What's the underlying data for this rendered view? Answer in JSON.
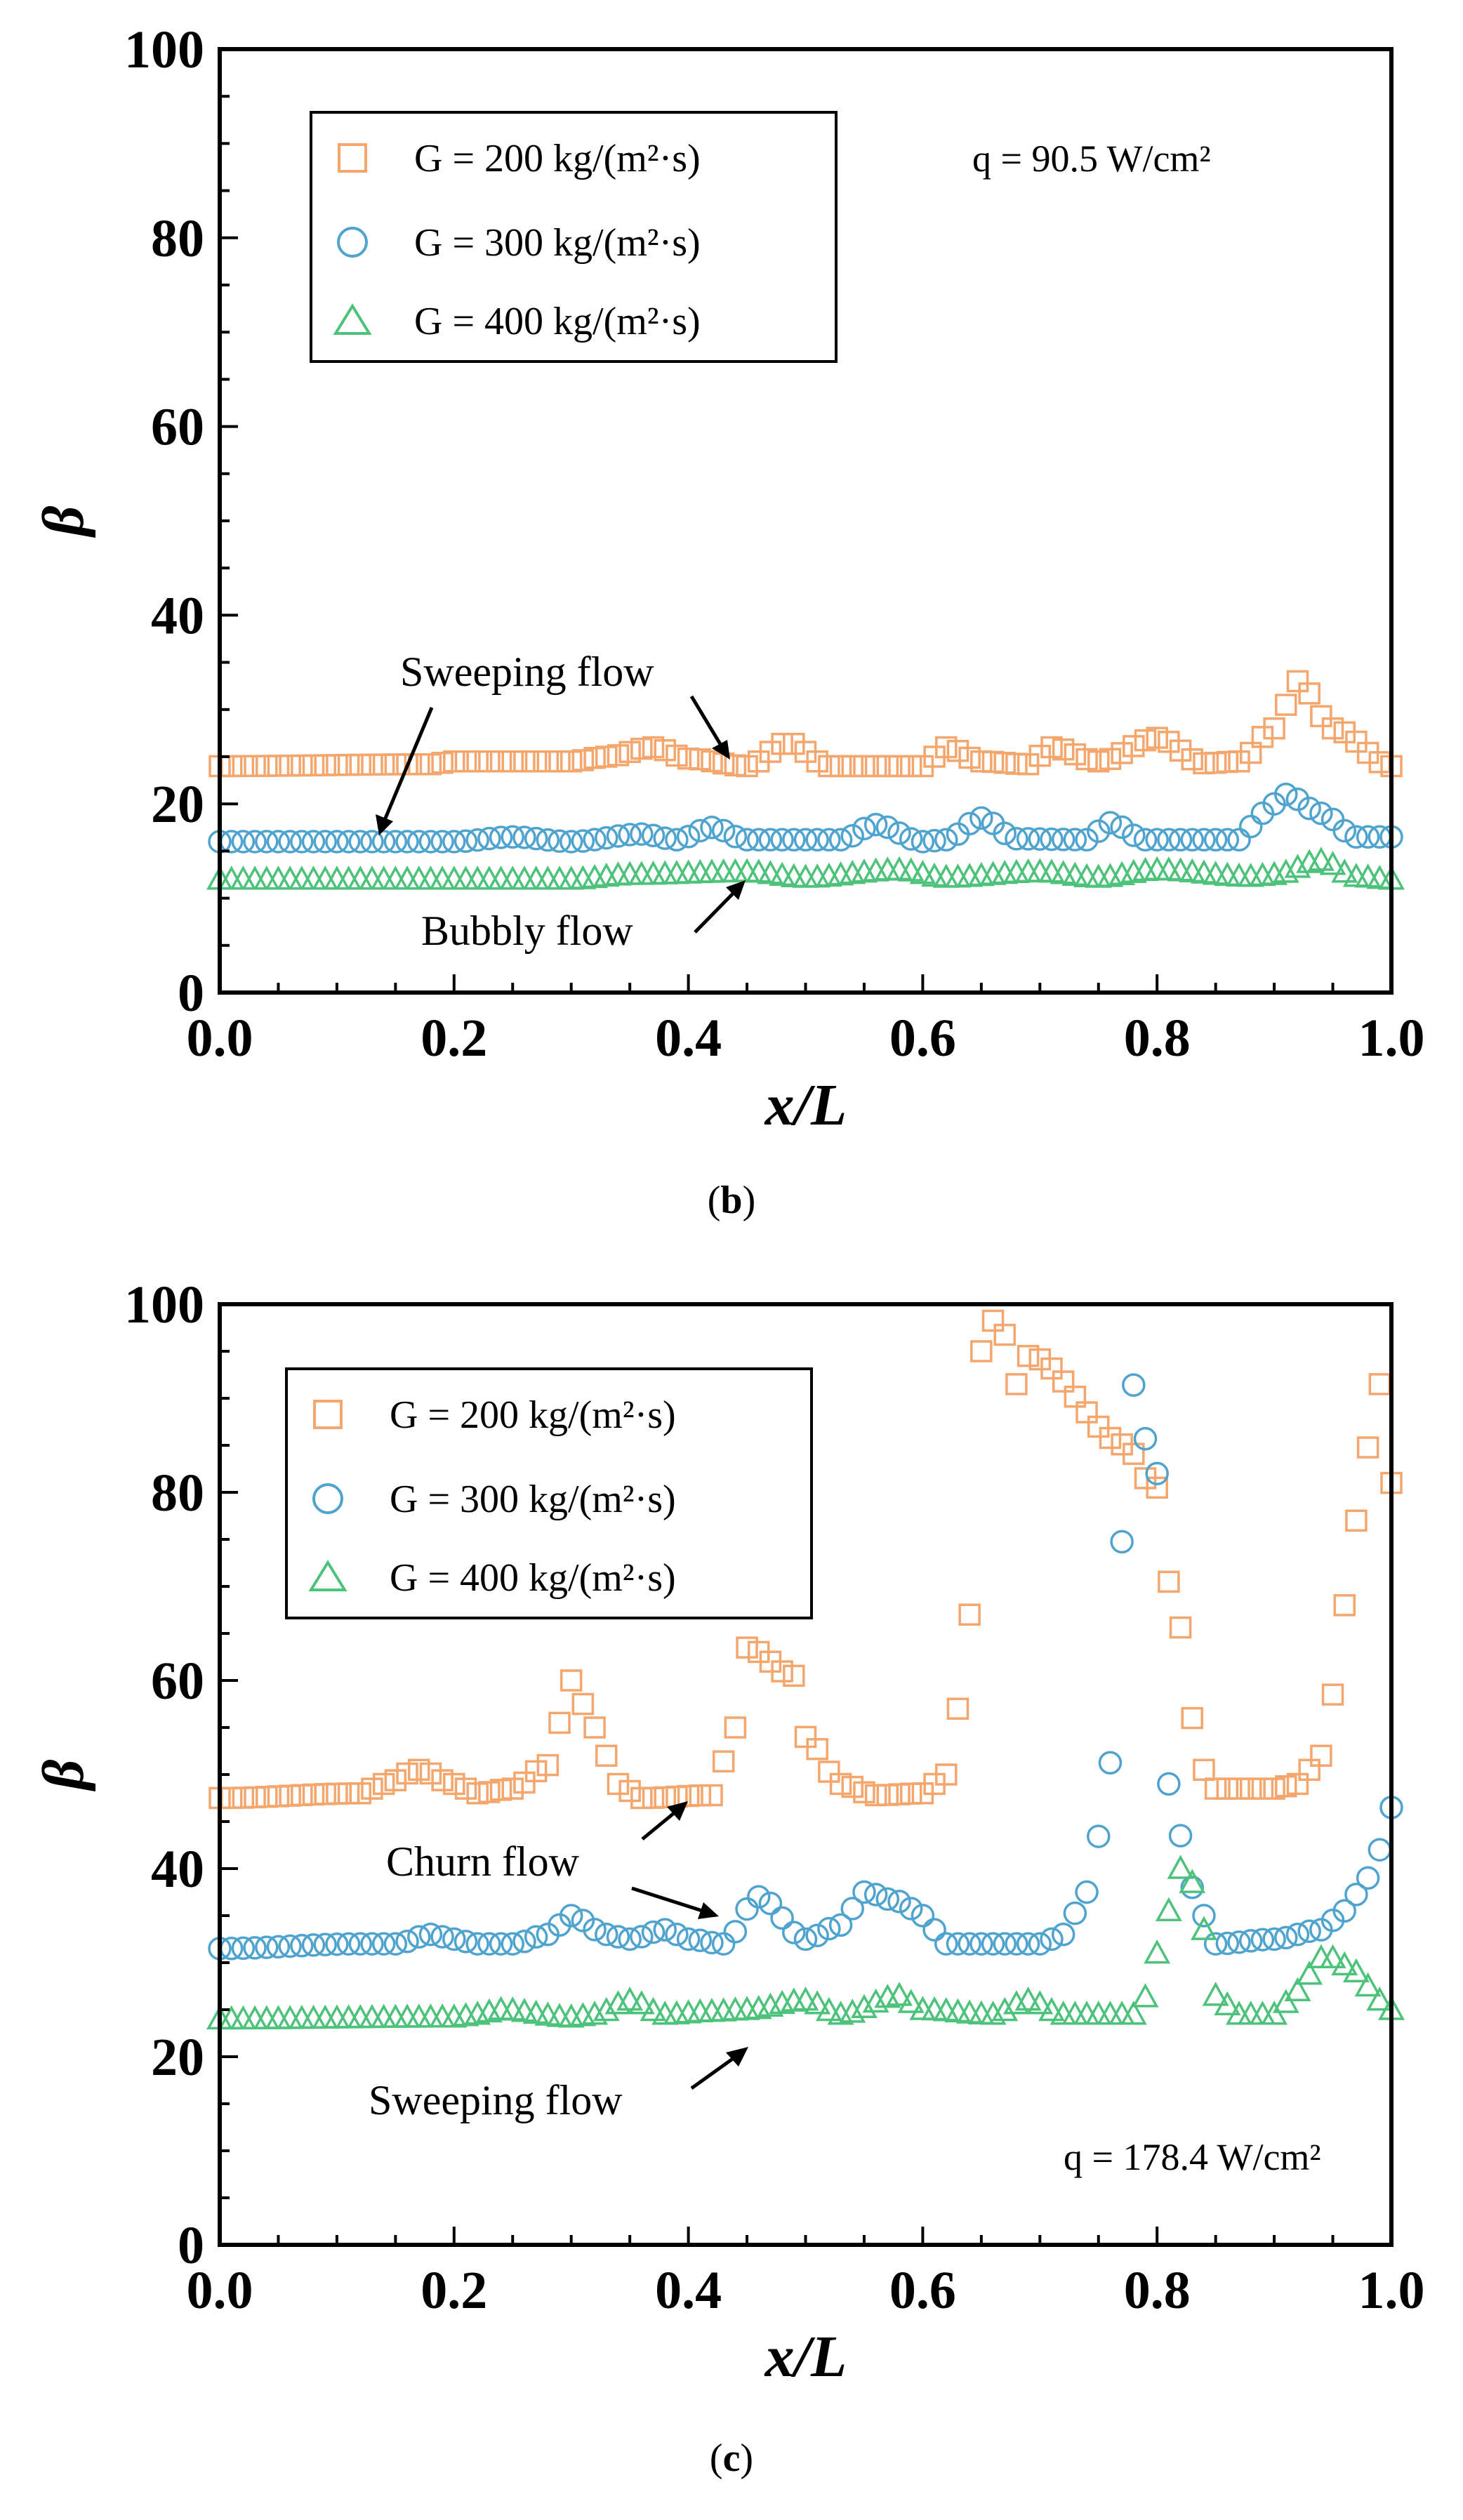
{
  "colors": {
    "s200": "#F4A66C",
    "s300": "#4FA3CF",
    "s400": "#4DC27A",
    "axis": "#000000"
  },
  "charts": [
    {
      "type": "scatter",
      "caption_pre": "(",
      "caption_letter": "b",
      "caption_post": ")",
      "xlabel": "x/L",
      "ylabel": "β",
      "xlim": [
        0,
        1
      ],
      "ylim": [
        0,
        100
      ],
      "xticks": [
        "0.0",
        "0.2",
        "0.4",
        "0.6",
        "0.8",
        "1.0"
      ],
      "yticks": [
        "0",
        "20",
        "40",
        "60",
        "80",
        "100"
      ],
      "legend": [
        "G = 200 kg/(m²·s)",
        "G = 300 kg/(m²·s)",
        "G = 400 kg/(m²·s)"
      ],
      "note": "q = 90.5 W/cm²",
      "annotations": [
        "Sweeping flow",
        "Bubbly flow"
      ],
      "series": [
        {
          "name": "G = 200 kg/(m²·s)",
          "marker": "square",
          "color": "#F4A66C",
          "knots": [
            [
              0,
              24.0
            ],
            [
              0.18,
              24.2
            ],
            [
              0.2,
              24.5
            ],
            [
              0.3,
              24.5
            ],
            [
              0.33,
              25.0
            ],
            [
              0.37,
              26.0
            ],
            [
              0.4,
              24.8
            ],
            [
              0.45,
              24.0
            ],
            [
              0.485,
              26.5
            ],
            [
              0.52,
              24.0
            ],
            [
              0.6,
              24.0
            ],
            [
              0.62,
              26.0
            ],
            [
              0.65,
              24.5
            ],
            [
              0.69,
              24.2
            ],
            [
              0.71,
              26.0
            ],
            [
              0.75,
              24.5
            ],
            [
              0.8,
              27.0
            ],
            [
              0.84,
              24.3
            ],
            [
              0.87,
              24.5
            ],
            [
              0.9,
              28.0
            ],
            [
              0.92,
              33.0
            ],
            [
              0.95,
              28.0
            ],
            [
              1.0,
              24.0
            ]
          ]
        },
        {
          "name": "G = 300 kg/(m²·s)",
          "marker": "circle",
          "color": "#4FA3CF",
          "knots": [
            [
              0,
              16.0
            ],
            [
              0.2,
              16.0
            ],
            [
              0.25,
              16.5
            ],
            [
              0.3,
              16.0
            ],
            [
              0.36,
              16.8
            ],
            [
              0.39,
              16.2
            ],
            [
              0.42,
              17.5
            ],
            [
              0.45,
              16.2
            ],
            [
              0.53,
              16.2
            ],
            [
              0.56,
              17.8
            ],
            [
              0.6,
              16.0
            ],
            [
              0.62,
              16.2
            ],
            [
              0.65,
              18.5
            ],
            [
              0.68,
              16.3
            ],
            [
              0.74,
              16.2
            ],
            [
              0.76,
              18.0
            ],
            [
              0.79,
              16.2
            ],
            [
              0.87,
              16.2
            ],
            [
              0.89,
              19.0
            ],
            [
              0.91,
              21.0
            ],
            [
              0.94,
              19.0
            ],
            [
              0.97,
              16.5
            ],
            [
              1.0,
              16.5
            ]
          ]
        },
        {
          "name": "G = 400 kg/(m²·s)",
          "marker": "triangle",
          "color": "#4DC27A",
          "knots": [
            [
              0,
              12.0
            ],
            [
              0.3,
              12.0
            ],
            [
              0.35,
              12.5
            ],
            [
              0.45,
              12.8
            ],
            [
              0.5,
              12.2
            ],
            [
              0.58,
              13.0
            ],
            [
              0.62,
              12.2
            ],
            [
              0.7,
              12.8
            ],
            [
              0.75,
              12.2
            ],
            [
              0.8,
              13.0
            ],
            [
              0.88,
              12.3
            ],
            [
              0.9,
              12.5
            ],
            [
              0.94,
              14.0
            ],
            [
              0.97,
              12.3
            ],
            [
              1.0,
              12.0
            ]
          ]
        }
      ]
    },
    {
      "type": "scatter",
      "caption_pre": "(",
      "caption_letter": "c",
      "caption_post": ")",
      "xlabel": "x/L",
      "ylabel": "β",
      "xlim": [
        0,
        1
      ],
      "ylim": [
        0,
        100
      ],
      "xticks": [
        "0.0",
        "0.2",
        "0.4",
        "0.6",
        "0.8",
        "1.0"
      ],
      "yticks": [
        "0",
        "20",
        "40",
        "60",
        "80",
        "100"
      ],
      "legend": [
        "G = 200 kg/(m²·s)",
        "G = 300 kg/(m²·s)",
        "G = 400 kg/(m²·s)"
      ],
      "note": "q = 178.4 W/cm²",
      "annotations": [
        "Churn flow",
        "Sweeping flow"
      ],
      "series": [
        {
          "name": "G = 200 kg/(m²·s)",
          "marker": "square",
          "color": "#F4A66C",
          "knots": [
            [
              0,
              47.5
            ],
            [
              0.12,
              48.0
            ],
            [
              0.14,
              49.0
            ],
            [
              0.17,
              50.5
            ],
            [
              0.2,
              49.0
            ],
            [
              0.22,
              48.0
            ],
            [
              0.25,
              48.5
            ],
            [
              0.28,
              51.0
            ],
            [
              0.3,
              60.0
            ],
            [
              0.32,
              55.0
            ],
            [
              0.34,
              49.0
            ],
            [
              0.36,
              47.5
            ],
            [
              0.42,
              47.8
            ],
            [
              0.44,
              55.0
            ],
            [
              0.45,
              63.5
            ],
            [
              0.49,
              60.5
            ],
            [
              0.5,
              54.0
            ],
            [
              0.53,
              49.0
            ],
            [
              0.56,
              47.8
            ],
            [
              0.6,
              48.0
            ],
            [
              0.62,
              50.0
            ],
            [
              0.63,
              57.0
            ],
            [
              0.64,
              67.0
            ],
            [
              0.645,
              93.0
            ],
            [
              0.655,
              97.0
            ],
            [
              0.665,
              99.5
            ],
            [
              0.675,
              94.0
            ],
            [
              0.68,
              91.5
            ],
            [
              0.69,
              94.5
            ],
            [
              0.775,
              85.0
            ],
            [
              0.79,
              81.5
            ],
            [
              0.8,
              80.5
            ],
            [
              0.81,
              70.5
            ],
            [
              0.815,
              69.0
            ],
            [
              0.83,
              56.0
            ],
            [
              0.84,
              50.5
            ],
            [
              0.85,
              48.5
            ],
            [
              0.9,
              48.5
            ],
            [
              0.92,
              49.0
            ],
            [
              0.94,
              52.0
            ],
            [
              0.95,
              58.5
            ],
            [
              0.96,
              68.0
            ],
            [
              0.97,
              77.0
            ],
            [
              0.985,
              87.5
            ],
            [
              0.995,
              95.5
            ],
            [
              1.0,
              81.0
            ]
          ]
        },
        {
          "name": "G = 300 kg/(m²·s)",
          "marker": "circle",
          "color": "#4FA3CF",
          "knots": [
            [
              0,
              31.5
            ],
            [
              0.12,
              32.0
            ],
            [
              0.15,
              32.0
            ],
            [
              0.18,
              33.0
            ],
            [
              0.2,
              32.5
            ],
            [
              0.22,
              32.0
            ],
            [
              0.25,
              32.0
            ],
            [
              0.28,
              33.0
            ],
            [
              0.3,
              35.0
            ],
            [
              0.33,
              33.0
            ],
            [
              0.35,
              32.5
            ],
            [
              0.38,
              33.5
            ],
            [
              0.4,
              32.5
            ],
            [
              0.43,
              32.0
            ],
            [
              0.46,
              37.0
            ],
            [
              0.5,
              32.5
            ],
            [
              0.53,
              34.0
            ],
            [
              0.55,
              37.5
            ],
            [
              0.58,
              36.5
            ],
            [
              0.6,
              35.0
            ],
            [
              0.62,
              32.0
            ],
            [
              0.7,
              32.0
            ],
            [
              0.72,
              33.0
            ],
            [
              0.74,
              37.5
            ],
            [
              0.755,
              45.5
            ],
            [
              0.765,
              57.0
            ],
            [
              0.775,
              92.5
            ],
            [
              0.8,
              82.0
            ],
            [
              0.81,
              49.0
            ],
            [
              0.83,
              38.0
            ],
            [
              0.84,
              35.0
            ],
            [
              0.85,
              32.0
            ],
            [
              0.9,
              32.5
            ],
            [
              0.94,
              33.5
            ],
            [
              0.96,
              35.5
            ],
            [
              0.98,
              39.0
            ],
            [
              0.99,
              42.0
            ],
            [
              1.0,
              46.5
            ]
          ]
        },
        {
          "name": "G = 400 kg/(m²·s)",
          "marker": "triangle",
          "color": "#4DC27A",
          "knots": [
            [
              0,
              24.0
            ],
            [
              0.2,
              24.2
            ],
            [
              0.22,
              24.5
            ],
            [
              0.24,
              25.0
            ],
            [
              0.3,
              24.2
            ],
            [
              0.32,
              24.5
            ],
            [
              0.35,
              26.0
            ],
            [
              0.38,
              24.5
            ],
            [
              0.42,
              24.8
            ],
            [
              0.45,
              25.0
            ],
            [
              0.5,
              26.0
            ],
            [
              0.53,
              24.5
            ],
            [
              0.58,
              26.5
            ],
            [
              0.6,
              25.0
            ],
            [
              0.66,
              24.5
            ],
            [
              0.69,
              26.0
            ],
            [
              0.72,
              24.5
            ],
            [
              0.78,
              24.5
            ],
            [
              0.795,
              27.0
            ],
            [
              0.8,
              31.0
            ],
            [
              0.82,
              40.0
            ],
            [
              0.83,
              38.5
            ],
            [
              0.84,
              33.5
            ],
            [
              0.85,
              26.5
            ],
            [
              0.87,
              24.5
            ],
            [
              0.9,
              24.5
            ],
            [
              0.92,
              27.0
            ],
            [
              0.94,
              30.5
            ],
            [
              0.95,
              30.5
            ],
            [
              0.97,
              29.0
            ],
            [
              0.99,
              26.0
            ],
            [
              1.0,
              25.0
            ]
          ]
        }
      ]
    }
  ]
}
